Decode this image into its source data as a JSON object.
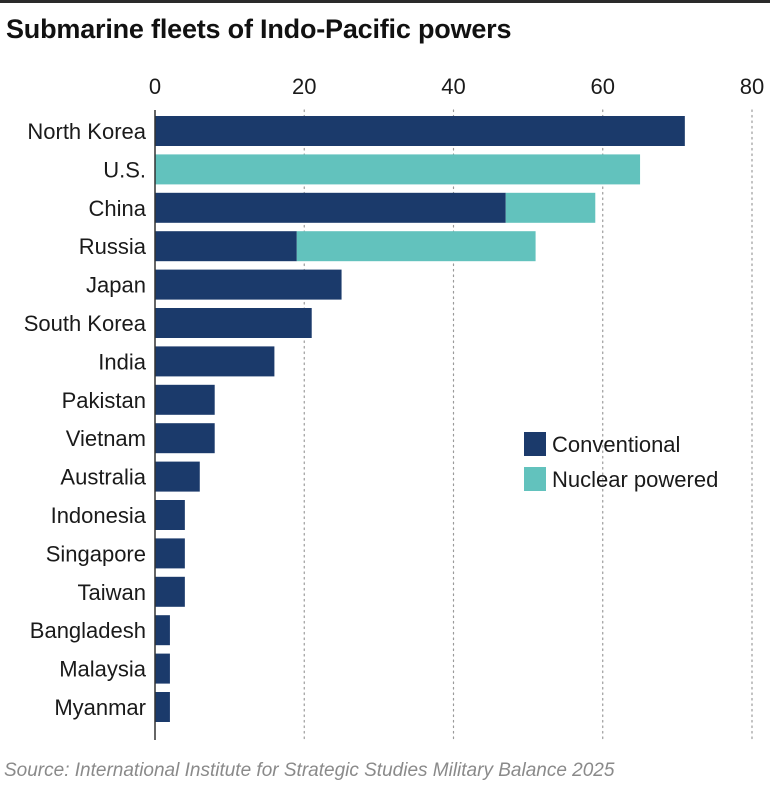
{
  "title": "Submarine fleets of Indo-Pacific powers",
  "source": "Source: International Institute for Strategic Studies Military Balance 2025",
  "colors": {
    "conventional": "#1b3a6b",
    "nuclear": "#62c2bd",
    "grid": "#9a9a9a",
    "axis": "#333333",
    "text": "#1a1a1a"
  },
  "chart_data": {
    "type": "bar",
    "orientation": "horizontal",
    "stacked": true,
    "categories": [
      "North Korea",
      "U.S.",
      "China",
      "Russia",
      "Japan",
      "South Korea",
      "India",
      "Pakistan",
      "Vietnam",
      "Australia",
      "Indonesia",
      "Singapore",
      "Taiwan",
      "Bangladesh",
      "Malaysia",
      "Myanmar"
    ],
    "series": [
      {
        "name": "Conventional",
        "color": "#1b3a6b",
        "values": [
          71,
          0,
          47,
          19,
          25,
          21,
          16,
          8,
          8,
          6,
          4,
          4,
          4,
          2,
          2,
          2
        ]
      },
      {
        "name": "Nuclear powered",
        "color": "#62c2bd",
        "values": [
          0,
          65,
          12,
          32,
          0,
          0,
          0,
          0,
          0,
          0,
          0,
          0,
          0,
          0,
          0,
          0
        ]
      }
    ],
    "xlim": [
      0,
      80
    ],
    "xticks": [
      0,
      20,
      40,
      60,
      80
    ],
    "xaxis_position": "top",
    "grid": "vertical dotted",
    "legend_position": "right-middle",
    "title": "Submarine fleets of Indo-Pacific powers",
    "xlabel": "",
    "ylabel": ""
  }
}
